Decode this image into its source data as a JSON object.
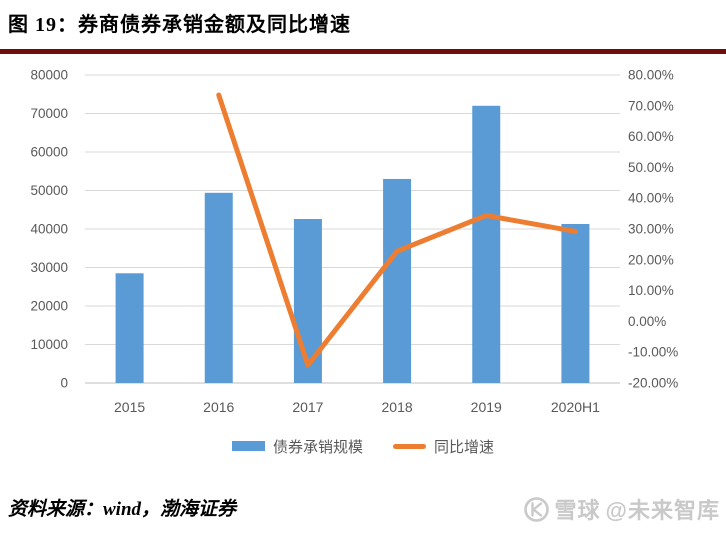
{
  "header": {
    "title": "图 19：券商债券承销金额及同比增速",
    "rule_color": "#720D0D"
  },
  "chart_data": {
    "type": "bar",
    "title": "券商债券承销金额及同比增速",
    "categories": [
      "2015",
      "2016",
      "2017",
      "2018",
      "2019",
      "2020H1"
    ],
    "series": [
      {
        "name": "债券承销规模",
        "kind": "bar",
        "axis": "left",
        "color": "#5B9BD5",
        "values": [
          28500,
          49400,
          42600,
          53000,
          72000,
          41300
        ]
      },
      {
        "name": "同比增速",
        "kind": "line",
        "axis": "right",
        "color": "#ED7D31",
        "values": [
          null,
          73.5,
          -14.2,
          22.8,
          34.4,
          29.2
        ]
      }
    ],
    "left_axis": {
      "min": 0,
      "max": 80000,
      "step": 10000,
      "tick_labels": [
        "80000",
        "70000",
        "60000",
        "50000",
        "40000",
        "30000",
        "20000",
        "10000",
        "0"
      ]
    },
    "right_axis": {
      "min": -20,
      "max": 80,
      "step": 10,
      "tick_labels": [
        "80.00%",
        "70.00%",
        "60.00%",
        "50.00%",
        "40.00%",
        "30.00%",
        "20.00%",
        "10.00%",
        "0.00%",
        "-10.00%",
        "-20.00%"
      ]
    },
    "grid": true,
    "gridline_color": "#D9D9D9",
    "axis_line_color": "#BFBFBF",
    "label_color": "#595959",
    "legend_position": "bottom"
  },
  "footer": {
    "source": "资料来源：wind，渤海证券",
    "watermark": {
      "icon": "xueqiu-logo",
      "brand": "雪球",
      "handle": "@未来智库",
      "color": "#c9c9c9"
    }
  }
}
